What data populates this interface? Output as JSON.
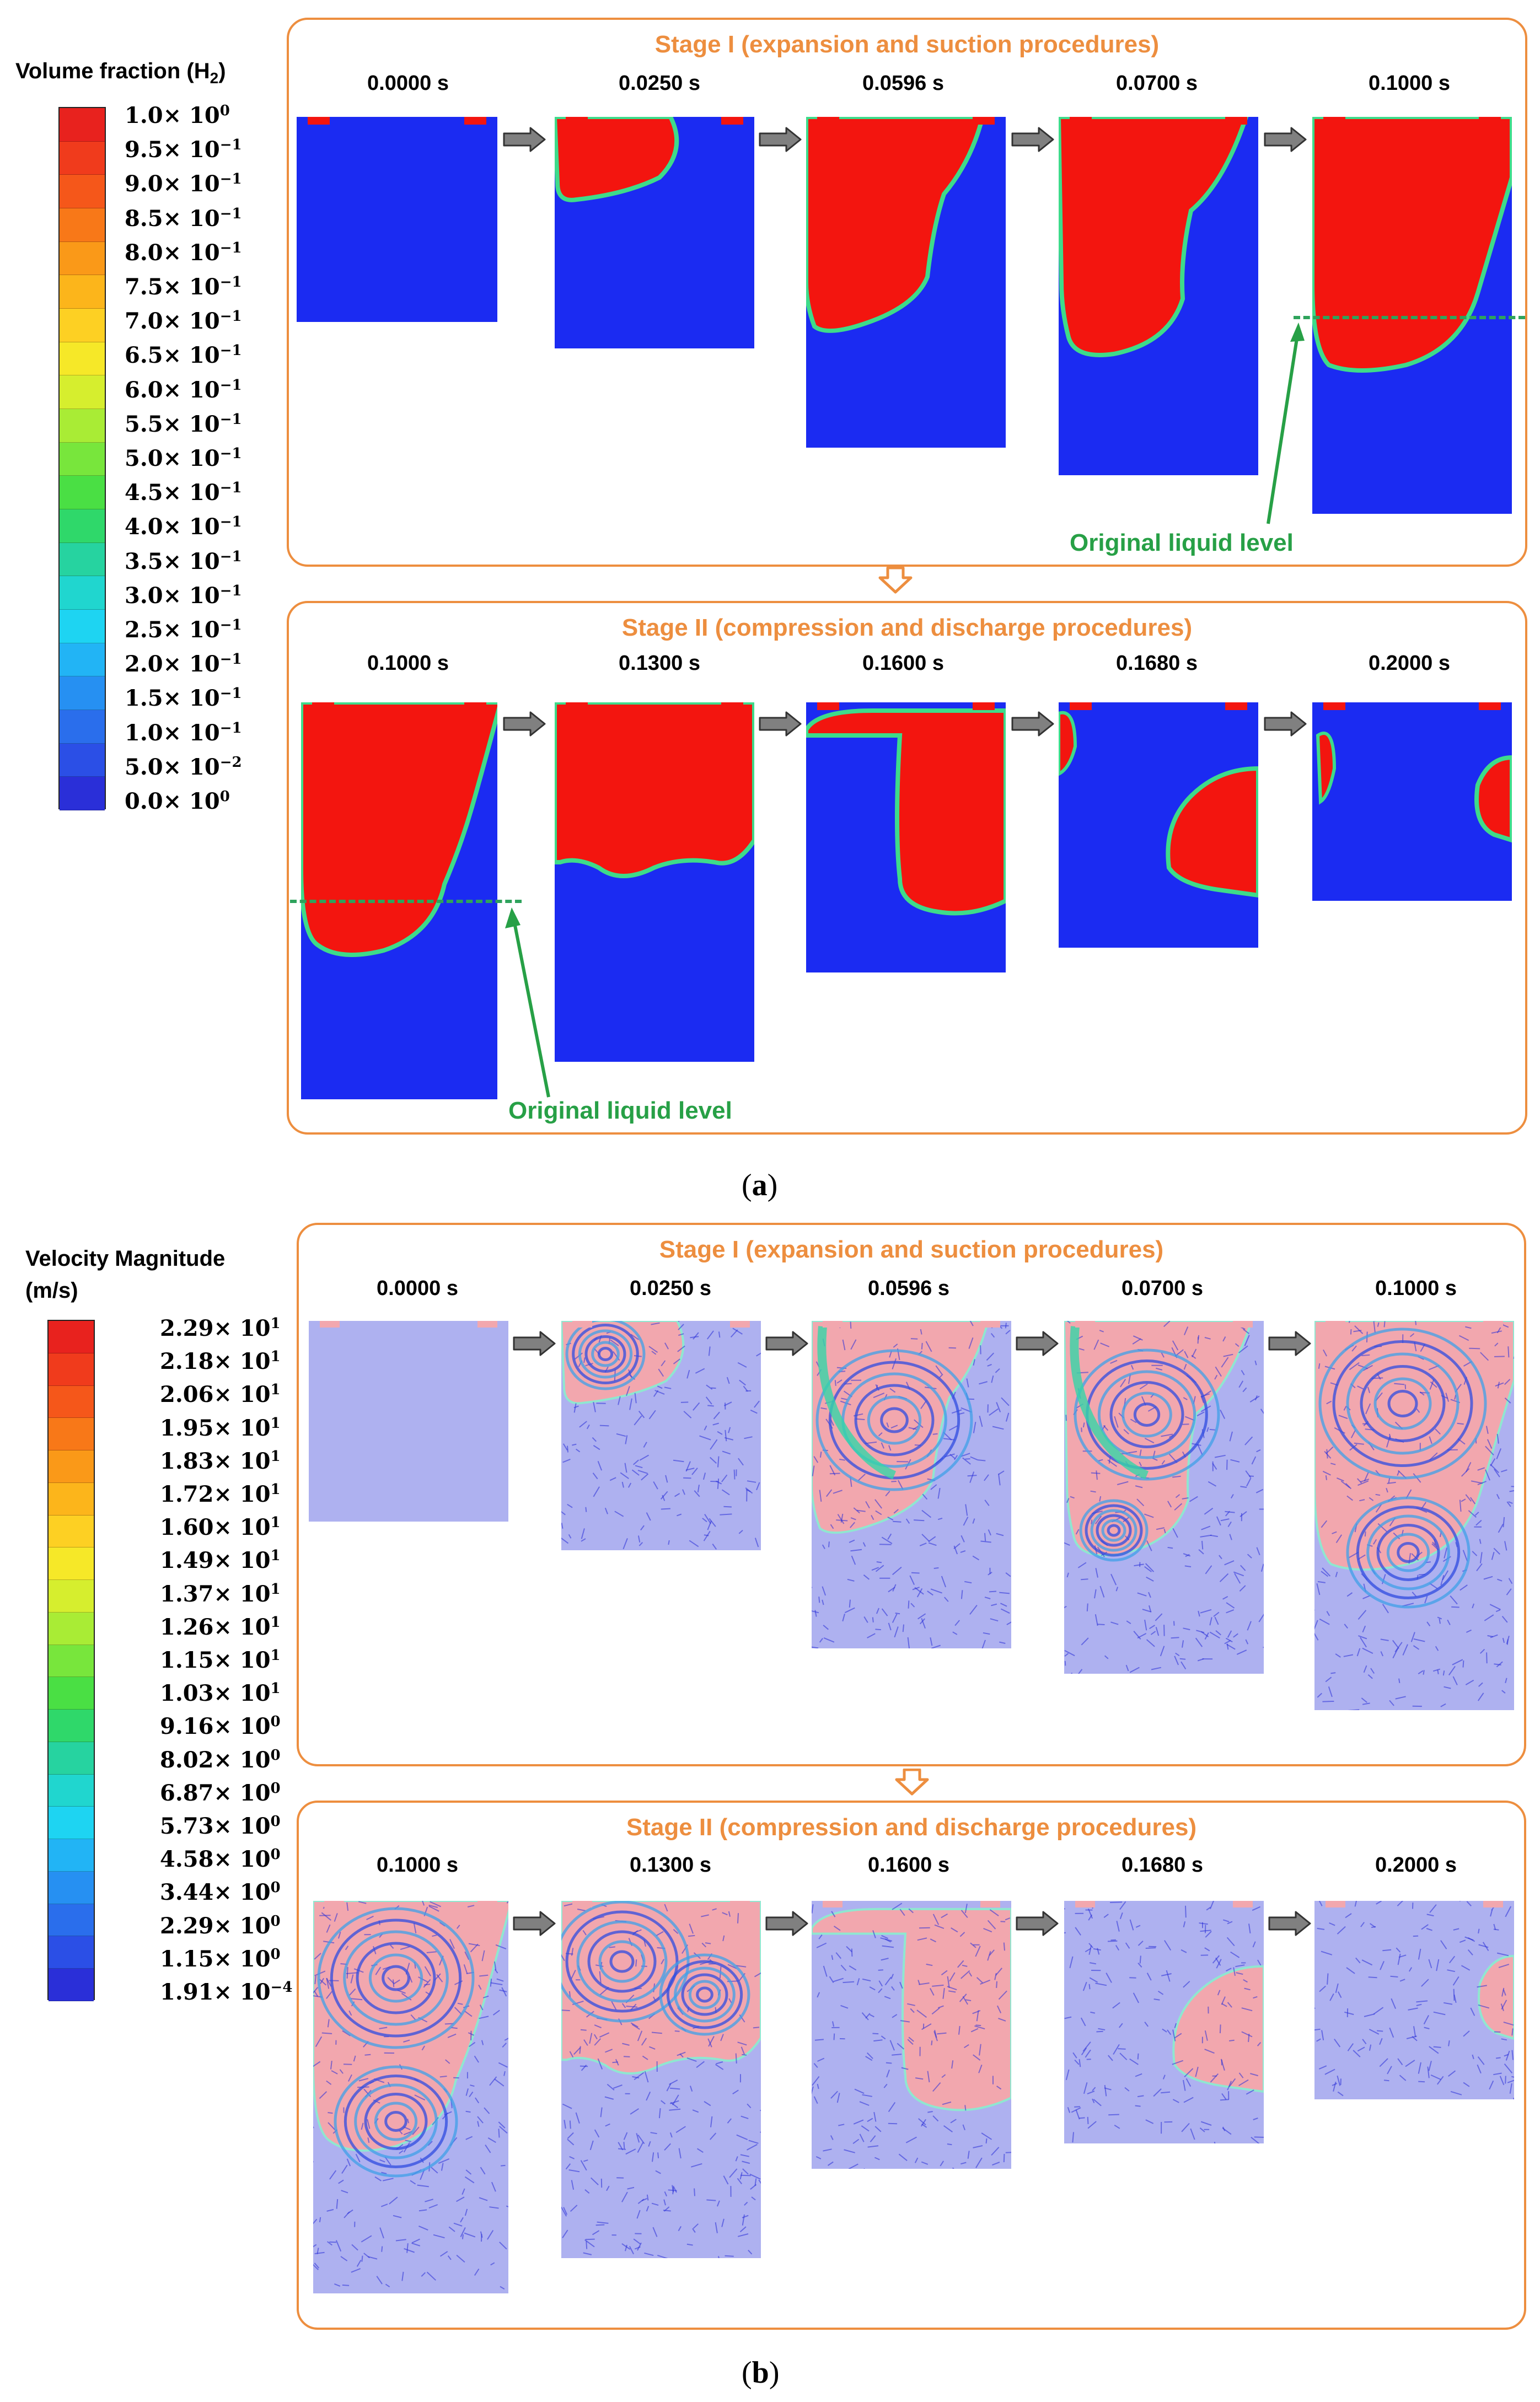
{
  "part_a": {
    "legend": {
      "title": "Volume fraction (H",
      "title_sub": "2",
      "title_end": ")",
      "labels": [
        {
          "m": "1.0×",
          "e": "10",
          "p": "0"
        },
        {
          "m": "9.5×",
          "e": "10",
          "p": "−1"
        },
        {
          "m": "9.0×",
          "e": "10",
          "p": "−1"
        },
        {
          "m": "8.5×",
          "e": "10",
          "p": "−1"
        },
        {
          "m": "8.0×",
          "e": "10",
          "p": "−1"
        },
        {
          "m": "7.5×",
          "e": "10",
          "p": "−1"
        },
        {
          "m": "7.0×",
          "e": "10",
          "p": "−1"
        },
        {
          "m": "6.5×",
          "e": "10",
          "p": "−1"
        },
        {
          "m": "6.0×",
          "e": "10",
          "p": "−1"
        },
        {
          "m": "5.5×",
          "e": "10",
          "p": "−1"
        },
        {
          "m": "5.0×",
          "e": "10",
          "p": "−1"
        },
        {
          "m": "4.5×",
          "e": "10",
          "p": "−1"
        },
        {
          "m": "4.0×",
          "e": "10",
          "p": "−1"
        },
        {
          "m": "3.5×",
          "e": "10",
          "p": "−1"
        },
        {
          "m": "3.0×",
          "e": "10",
          "p": "−1"
        },
        {
          "m": "2.5×",
          "e": "10",
          "p": "−1"
        },
        {
          "m": "2.0×",
          "e": "10",
          "p": "−1"
        },
        {
          "m": "1.5×",
          "e": "10",
          "p": "−1"
        },
        {
          "m": "1.0×",
          "e": "10",
          "p": "−1"
        },
        {
          "m": "5.0×",
          "e": "10",
          "p": "−2"
        },
        {
          "m": "0.0×",
          "e": "10",
          "p": "0"
        }
      ],
      "colors": [
        "#E8221E",
        "#F03B1C",
        "#F5571A",
        "#F87818",
        "#FA9918",
        "#FCB51B",
        "#FDD023",
        "#F6E828",
        "#D6EE2E",
        "#A9EC35",
        "#78E63C",
        "#4ADF44",
        "#2FD86A",
        "#26D3A0",
        "#20D6CF",
        "#1ED4F2",
        "#22B4F5",
        "#2690F2",
        "#2A6EEC",
        "#2B4FE6",
        "#2A2FD8"
      ]
    },
    "stage1": {
      "title": "Stage I (expansion and suction procedures)",
      "times": [
        "0.0000 s",
        "0.0250 s",
        "0.0596 s",
        "0.0700 s",
        "0.1000 s"
      ],
      "level_label": "Original liquid level"
    },
    "stage2": {
      "title": "Stage II (compression and discharge procedures)",
      "times": [
        "0.1000 s",
        "0.1300 s",
        "0.1600 s",
        "0.1680 s",
        "0.2000 s"
      ],
      "level_label": "Original liquid level"
    },
    "caption": "a"
  },
  "part_b": {
    "legend": {
      "title_line1": "Velocity Magnitude",
      "title_line2": "(m/s)",
      "labels": [
        {
          "m": "2.29×",
          "e": "10",
          "p": "1"
        },
        {
          "m": "2.18×",
          "e": "10",
          "p": "1"
        },
        {
          "m": "2.06×",
          "e": "10",
          "p": "1"
        },
        {
          "m": "1.95×",
          "e": "10",
          "p": "1"
        },
        {
          "m": "1.83×",
          "e": "10",
          "p": "1"
        },
        {
          "m": "1.72×",
          "e": "10",
          "p": "1"
        },
        {
          "m": "1.60×",
          "e": "10",
          "p": "1"
        },
        {
          "m": "1.49×",
          "e": "10",
          "p": "1"
        },
        {
          "m": "1.37×",
          "e": "10",
          "p": "1"
        },
        {
          "m": "1.26×",
          "e": "10",
          "p": "1"
        },
        {
          "m": "1.15×",
          "e": "10",
          "p": "1"
        },
        {
          "m": "1.03×",
          "e": "10",
          "p": "1"
        },
        {
          "m": "9.16×",
          "e": "10",
          "p": "0"
        },
        {
          "m": "8.02×",
          "e": "10",
          "p": "0"
        },
        {
          "m": "6.87×",
          "e": "10",
          "p": "0"
        },
        {
          "m": "5.73×",
          "e": "10",
          "p": "0"
        },
        {
          "m": "4.58×",
          "e": "10",
          "p": "0"
        },
        {
          "m": "3.44×",
          "e": "10",
          "p": "0"
        },
        {
          "m": "2.29×",
          "e": "10",
          "p": "0"
        },
        {
          "m": "1.15×",
          "e": "10",
          "p": "0"
        },
        {
          "m": "1.91×",
          "e": "10",
          "p": "−4"
        }
      ],
      "colors": [
        "#E8221E",
        "#F03B1C",
        "#F5571A",
        "#F87818",
        "#FA9918",
        "#FCB51B",
        "#FDD023",
        "#F6E828",
        "#D6EE2E",
        "#A9EC35",
        "#78E63C",
        "#4ADF44",
        "#2FD86A",
        "#26D3A0",
        "#20D6CF",
        "#1ED4F2",
        "#22B4F5",
        "#2690F2",
        "#2A6EEC",
        "#2B4FE6",
        "#2A2FD8"
      ]
    },
    "stage1": {
      "title": "Stage I (expansion and suction procedures)",
      "times": [
        "0.0000 s",
        "0.0250 s",
        "0.0596 s",
        "0.0700 s",
        "0.1000 s"
      ]
    },
    "stage2": {
      "title": "Stage II (compression and discharge procedures)",
      "times": [
        "0.1000 s",
        "0.1300 s",
        "0.1600 s",
        "0.1680 s",
        "0.2000 s"
      ]
    },
    "caption": "b"
  },
  "colors": {
    "stage_border": "#ED8E3F",
    "liquid": "#1B2BF2",
    "gas": "#F3150F",
    "level_green": "#27A046",
    "velocity_bg": "#AEB1F0",
    "gas_pink": "#F2A7AE"
  },
  "icons": {
    "step_arrow": "grey-right-arrow-icon",
    "stage_arrow": "orange-down-arrow-icon"
  }
}
